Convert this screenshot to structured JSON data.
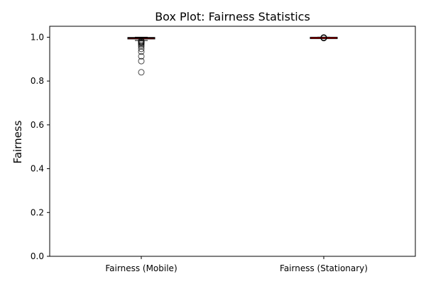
{
  "chart_data": {
    "type": "box",
    "title": "Box Plot: Fairness Statistics",
    "xlabel": "",
    "ylabel": "Fairness",
    "ylim": [
      0,
      1.05
    ],
    "yticks": [
      0.0,
      0.2,
      0.4,
      0.6,
      0.8,
      1.0
    ],
    "ytick_labels": [
      "0.0",
      "0.2",
      "0.4",
      "0.6",
      "0.8",
      "1.0"
    ],
    "grid": false,
    "box_color": "#ff0000",
    "median_color": "#000000",
    "categories": [
      "Fairness (Mobile)",
      "Fairness (Stationary)"
    ],
    "series": [
      {
        "category": "Fairness (Mobile)",
        "whisker_low": 0.985,
        "q1": 0.992,
        "median": 0.996,
        "q3": 0.999,
        "whisker_high": 1.0,
        "outliers": [
          0.984,
          0.981,
          0.978,
          0.975,
          0.971,
          0.965,
          0.958,
          0.947,
          0.934,
          0.913,
          0.891,
          0.84
        ]
      },
      {
        "category": "Fairness (Stationary)",
        "whisker_low": 0.9985,
        "q1": 0.999,
        "median": 0.9995,
        "q3": 1.0,
        "whisker_high": 1.0,
        "outliers": [
          0.998,
          0.997,
          0.996,
          0.999
        ]
      }
    ]
  }
}
